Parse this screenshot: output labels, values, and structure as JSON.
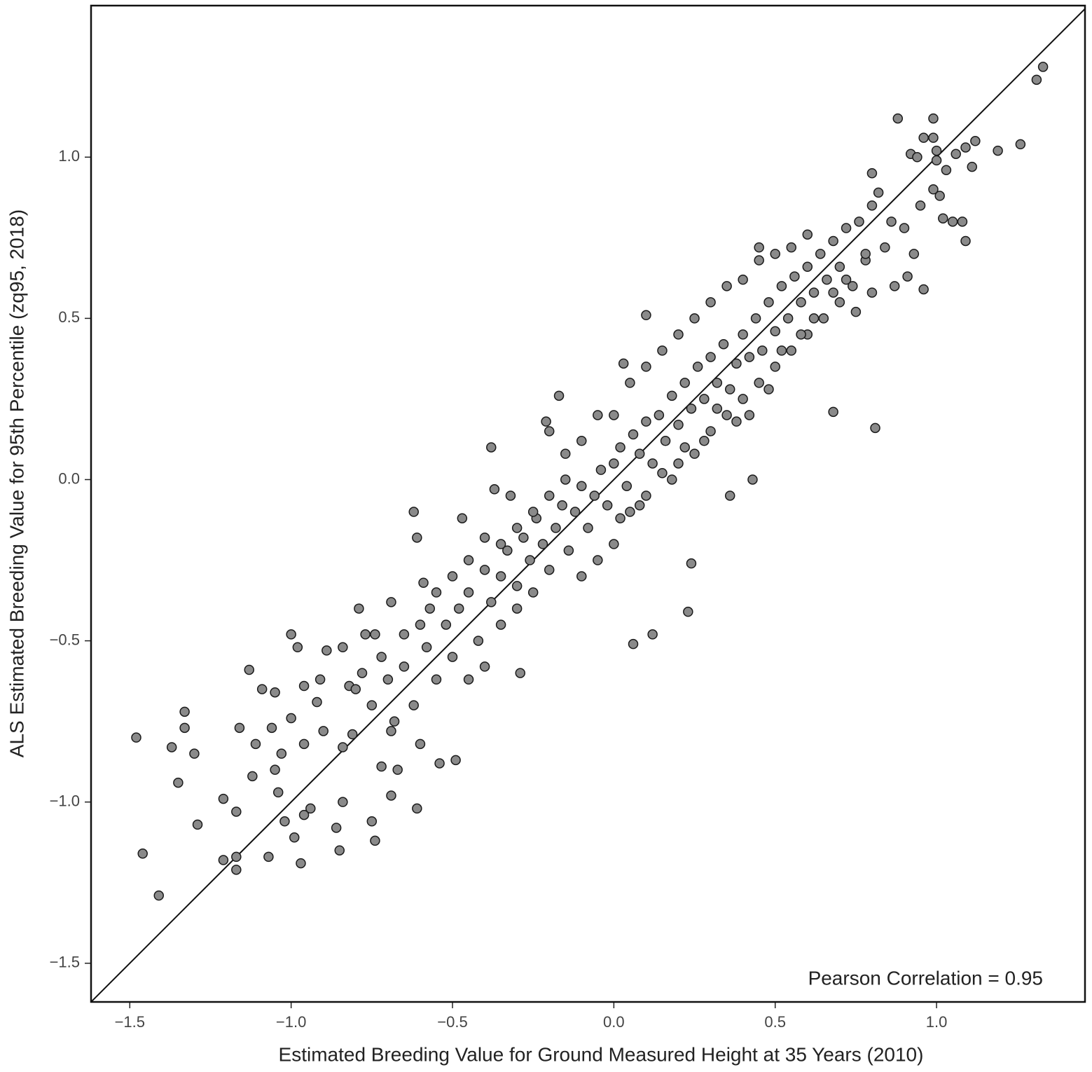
{
  "chart_data": {
    "type": "scatter",
    "x_label": "Estimated Breeding Value for Ground Measured Height at 35 Years (2010)",
    "y_label": "ALS Estimated Breeding Value for 95th Percentile (zq95, 2018)",
    "annotation": "Pearson Correlation = 0.95",
    "color": "#8a8a8a",
    "edge_color": "#1a1a1a",
    "identity_line": true,
    "xlim": [
      -1.62,
      1.46
    ],
    "ylim": [
      -1.62,
      1.47
    ],
    "xticks": [
      {
        "value": -1.5,
        "label": "−1.5"
      },
      {
        "value": -1.0,
        "label": "−1.0"
      },
      {
        "value": -0.5,
        "label": "−0.5"
      },
      {
        "value": 0.0,
        "label": "0.0"
      },
      {
        "value": 0.5,
        "label": "0.5"
      },
      {
        "value": 1.0,
        "label": "1.0"
      }
    ],
    "yticks": [
      {
        "value": -1.5,
        "label": "−1.5"
      },
      {
        "value": -1.0,
        "label": "−1.0"
      },
      {
        "value": -0.5,
        "label": "−0.5"
      },
      {
        "value": 0.0,
        "label": "0.0"
      },
      {
        "value": 0.5,
        "label": "0.5"
      },
      {
        "value": 1.0,
        "label": "1.0"
      }
    ],
    "x": [
      -1.48,
      -1.46,
      -1.41,
      -1.37,
      -1.35,
      -1.33,
      -1.33,
      -1.3,
      -1.29,
      -1.21,
      -1.21,
      -1.17,
      -1.17,
      -1.17,
      -1.16,
      -1.13,
      -1.11,
      -1.12,
      -1.09,
      -1.07,
      -1.06,
      -1.05,
      -1.05,
      -1.04,
      -1.03,
      -1.02,
      -1.0,
      -1.0,
      -0.99,
      -0.98,
      -0.97,
      -0.96,
      -0.96,
      -0.94,
      -0.96,
      -0.91,
      -0.89,
      -0.92,
      -0.9,
      -0.86,
      -0.85,
      -0.84,
      -0.84,
      -0.84,
      -0.82,
      -0.79,
      -0.77,
      -0.81,
      -0.75,
      -0.74,
      -0.74,
      -0.72,
      -0.69,
      -0.69,
      -0.67,
      -0.69,
      -0.62,
      -0.61,
      -0.61,
      -0.6,
      -0.59,
      -0.54,
      -0.49,
      -0.47,
      -0.38,
      -0.37,
      -0.32,
      -0.29,
      -0.21,
      -0.17,
      0.06,
      0.12,
      0.23,
      0.24,
      0.43,
      0.36,
      0.68,
      0.81,
      0.1,
      0.03,
      0.45,
      0.88,
      0.99,
      0.96,
      0.99,
      0.92,
      0.94,
      1.0,
      1.0,
      1.06,
      1.09,
      1.12,
      1.11,
      1.03,
      1.19,
      1.26,
      1.31,
      1.33,
      0.8,
      0.82,
      1.01,
      0.99,
      1.02,
      1.05,
      1.08,
      1.09,
      0.96,
      0.91,
      0.93,
      0.87,
      -0.55,
      -0.52,
      -0.5,
      -0.48,
      -0.45,
      -0.42,
      -0.4,
      -0.38,
      -0.35,
      -0.33,
      -0.3,
      -0.28,
      -0.26,
      -0.24,
      -0.22,
      -0.2,
      -0.18,
      -0.16,
      -0.14,
      -0.12,
      -0.1,
      -0.08,
      -0.06,
      -0.04,
      -0.02,
      0.0,
      0.02,
      0.04,
      0.06,
      0.08,
      0.1,
      0.12,
      0.14,
      0.16,
      0.18,
      0.2,
      0.22,
      0.24,
      0.26,
      0.28,
      0.3,
      0.32,
      0.34,
      0.36,
      0.38,
      0.4,
      0.42,
      0.44,
      0.46,
      0.48,
      0.5,
      0.52,
      0.54,
      0.56,
      0.58,
      0.6,
      0.62,
      0.64,
      0.66,
      0.68,
      0.7,
      0.72,
      0.74,
      0.76,
      0.78,
      0.8,
      0.84,
      0.86,
      0.9,
      0.95,
      -0.65,
      -0.62,
      -0.6,
      -0.58,
      -0.7,
      -0.72,
      -0.68,
      -0.75,
      -0.78,
      -0.8,
      -0.65,
      -0.57,
      -0.45,
      -0.4,
      -0.35,
      -0.3,
      -0.25,
      -0.2,
      -0.15,
      -0.1,
      -0.05,
      0.0,
      0.05,
      0.1,
      0.15,
      0.2,
      0.25,
      0.3,
      0.35,
      0.4,
      0.45,
      0.5,
      0.55,
      0.6,
      0.65,
      0.7,
      0.75,
      0.8,
      -0.05,
      0.05,
      0.1,
      0.15,
      0.2,
      0.25,
      0.3,
      0.35,
      0.4,
      0.45,
      0.5,
      0.55,
      0.6,
      -0.3,
      -0.25,
      -0.35,
      -0.4,
      -0.45,
      -0.5,
      -0.55,
      -0.1,
      -0.15,
      -0.2,
      0.0,
      0.02,
      0.08,
      0.18,
      0.22,
      0.28,
      0.32,
      0.38,
      0.42,
      0.48,
      0.52,
      0.58,
      0.62,
      0.68,
      0.72,
      0.78
    ],
    "values": [
      -0.8,
      -1.16,
      -1.29,
      -0.83,
      -0.94,
      -0.72,
      -0.77,
      -0.85,
      -1.07,
      -0.99,
      -1.18,
      -1.03,
      -1.21,
      -1.17,
      -0.77,
      -0.59,
      -0.82,
      -0.92,
      -0.65,
      -1.17,
      -0.77,
      -0.66,
      -0.9,
      -0.97,
      -0.85,
      -1.06,
      -0.48,
      -0.74,
      -1.11,
      -0.52,
      -1.19,
      -0.82,
      -1.04,
      -1.02,
      -0.64,
      -0.62,
      -0.53,
      -0.69,
      -0.78,
      -1.08,
      -1.15,
      -0.52,
      -1.0,
      -0.83,
      -0.64,
      -0.4,
      -0.48,
      -0.79,
      -1.06,
      -1.12,
      -0.48,
      -0.89,
      -0.38,
      -0.98,
      -0.9,
      -0.78,
      -0.1,
      -0.18,
      -1.02,
      -0.82,
      -0.32,
      -0.88,
      -0.87,
      -0.12,
      0.1,
      -0.03,
      -0.05,
      -0.6,
      0.18,
      0.26,
      -0.51,
      -0.48,
      -0.41,
      -0.26,
      0.0,
      -0.05,
      0.21,
      0.16,
      0.51,
      0.36,
      0.72,
      1.12,
      1.12,
      1.06,
      1.06,
      1.01,
      1.0,
      1.02,
      0.99,
      1.01,
      1.03,
      1.05,
      0.97,
      0.96,
      1.02,
      1.04,
      1.24,
      1.28,
      0.95,
      0.89,
      0.88,
      0.9,
      0.81,
      0.8,
      0.8,
      0.74,
      0.59,
      0.63,
      0.7,
      0.6,
      -0.62,
      -0.45,
      -0.55,
      -0.4,
      -0.35,
      -0.5,
      -0.28,
      -0.38,
      -0.3,
      -0.22,
      -0.33,
      -0.18,
      -0.25,
      -0.12,
      -0.2,
      -0.28,
      -0.15,
      -0.08,
      -0.22,
      -0.1,
      -0.02,
      -0.15,
      -0.05,
      0.03,
      -0.08,
      0.05,
      0.1,
      -0.02,
      0.14,
      0.08,
      0.18,
      0.05,
      0.2,
      0.12,
      0.26,
      0.17,
      0.3,
      0.22,
      0.35,
      0.25,
      0.38,
      0.3,
      0.42,
      0.28,
      0.36,
      0.45,
      0.38,
      0.5,
      0.4,
      0.55,
      0.46,
      0.6,
      0.5,
      0.63,
      0.55,
      0.66,
      0.58,
      0.7,
      0.62,
      0.74,
      0.66,
      0.78,
      0.6,
      0.8,
      0.68,
      0.85,
      0.72,
      0.8,
      0.78,
      0.85,
      -0.58,
      -0.7,
      -0.45,
      -0.52,
      -0.62,
      -0.55,
      -0.75,
      -0.7,
      -0.6,
      -0.65,
      -0.48,
      -0.4,
      -0.62,
      -0.58,
      -0.45,
      -0.4,
      -0.35,
      -0.05,
      0.0,
      -0.3,
      -0.25,
      -0.2,
      -0.1,
      -0.05,
      0.02,
      0.05,
      0.08,
      0.15,
      0.2,
      0.25,
      0.3,
      0.35,
      0.4,
      0.45,
      0.5,
      0.55,
      0.52,
      0.58,
      0.2,
      0.3,
      0.35,
      0.4,
      0.45,
      0.5,
      0.55,
      0.6,
      0.62,
      0.68,
      0.7,
      0.72,
      0.76,
      -0.15,
      -0.1,
      -0.2,
      -0.18,
      -0.25,
      -0.3,
      -0.35,
      0.12,
      0.08,
      0.15,
      0.2,
      -0.12,
      -0.08,
      0.0,
      0.1,
      0.12,
      0.22,
      0.18,
      0.2,
      0.28,
      0.4,
      0.45,
      0.5,
      0.58,
      0.62,
      0.7
    ]
  }
}
